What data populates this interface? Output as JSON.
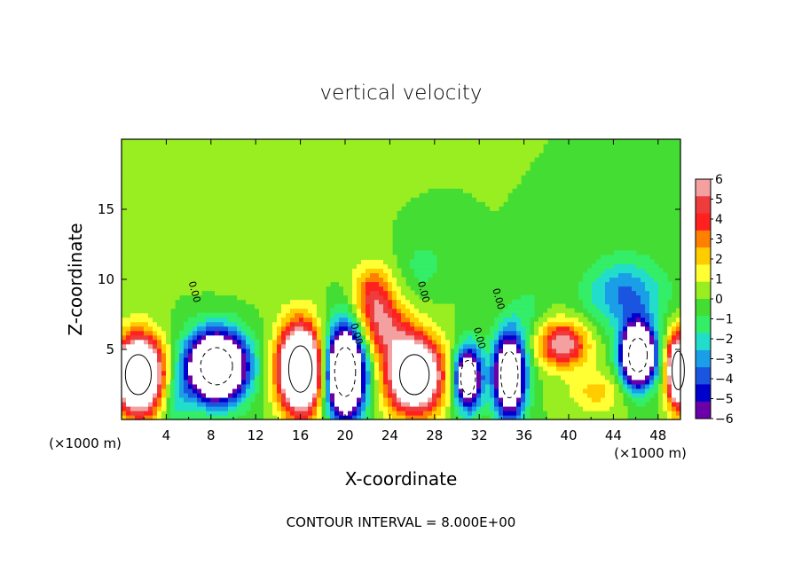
{
  "chart_data": {
    "type": "heatmap",
    "title": "vertical velocity",
    "xlabel": "X-coordinate",
    "ylabel": "Z-coordinate",
    "x_unit_left": "(×1000 m)",
    "x_unit_right": "(×1000 m)",
    "footer": "CONTOUR INTERVAL = 8.000E+00",
    "xlim": [
      0,
      50
    ],
    "ylim": [
      0,
      20
    ],
    "x_ticks": [
      "4",
      "8",
      "12",
      "16",
      "20",
      "24",
      "28",
      "32",
      "36",
      "40",
      "44",
      "48"
    ],
    "y_ticks": [
      "5",
      "10",
      "15"
    ],
    "colorbar": {
      "ticks": [
        "6",
        "5",
        "4",
        "3",
        "2",
        "1",
        "0",
        "−1",
        "−2",
        "−3",
        "−4",
        "−5",
        "−6"
      ],
      "range": [
        -6,
        6
      ],
      "colors": [
        "#f4a0a0",
        "#ee3b3b",
        "#ff2020",
        "#ff8000",
        "#ffcc00",
        "#ffff33",
        "#99ee22",
        "#44dd33",
        "#33ee66",
        "#22ddcc",
        "#1a9ee8",
        "#1a55e0",
        "#0000cc",
        "#6a00a8"
      ]
    },
    "contour_labels": [
      "0.00",
      "0.00",
      "0.00",
      "0.00",
      "0.00"
    ],
    "cells": [
      {
        "x": 1.5,
        "z": 3.2,
        "sx": 2.1,
        "sz": 2.6,
        "v": 14
      },
      {
        "x": 8.5,
        "z": 3.8,
        "sx": 2.6,
        "sz": 2.4,
        "v": -14
      },
      {
        "x": 16.0,
        "z": 3.6,
        "sx": 1.9,
        "sz": 3.0,
        "v": 14
      },
      {
        "x": 20.0,
        "z": 3.4,
        "sx": 1.7,
        "sz": 3.2,
        "v": -14
      },
      {
        "x": 26.2,
        "z": 3.2,
        "sx": 2.4,
        "sz": 2.6,
        "v": 12
      },
      {
        "x": 31.0,
        "z": 3.0,
        "sx": 1.2,
        "sz": 2.2,
        "v": -10
      },
      {
        "x": 34.7,
        "z": 3.2,
        "sx": 1.4,
        "sz": 3.0,
        "v": -11
      },
      {
        "x": 39.5,
        "z": 5.4,
        "sx": 2.2,
        "sz": 1.6,
        "v": 6
      },
      {
        "x": 46.2,
        "z": 4.6,
        "sx": 1.5,
        "sz": 2.2,
        "v": -13
      },
      {
        "x": 49.8,
        "z": 3.5,
        "sx": 1.0,
        "sz": 2.5,
        "v": 12
      },
      {
        "x": 45.0,
        "z": 9.0,
        "sx": 3.5,
        "sz": 2.5,
        "v": -3.5
      },
      {
        "x": 22.5,
        "z": 9.0,
        "sx": 1.8,
        "sz": 2.0,
        "v": 4
      },
      {
        "x": 23.5,
        "z": 6.5,
        "sx": 2.2,
        "sz": 2.0,
        "v": 4.5
      },
      {
        "x": 12.0,
        "z": 14.0,
        "sx": 6.0,
        "sz": 4.0,
        "v": 0.8
      },
      {
        "x": 27.0,
        "z": 11.0,
        "sx": 2.0,
        "sz": 2.0,
        "v": -1.2
      },
      {
        "x": 36.5,
        "z": 8.0,
        "sx": 1.5,
        "sz": 2.0,
        "v": -1.0
      },
      {
        "x": 4.8,
        "z": 1.5,
        "sx": 1.2,
        "sz": 2.0,
        "v": -2.0
      },
      {
        "x": 42.5,
        "z": 2.0,
        "sx": 2.5,
        "sz": 1.5,
        "v": 2.0
      }
    ]
  }
}
